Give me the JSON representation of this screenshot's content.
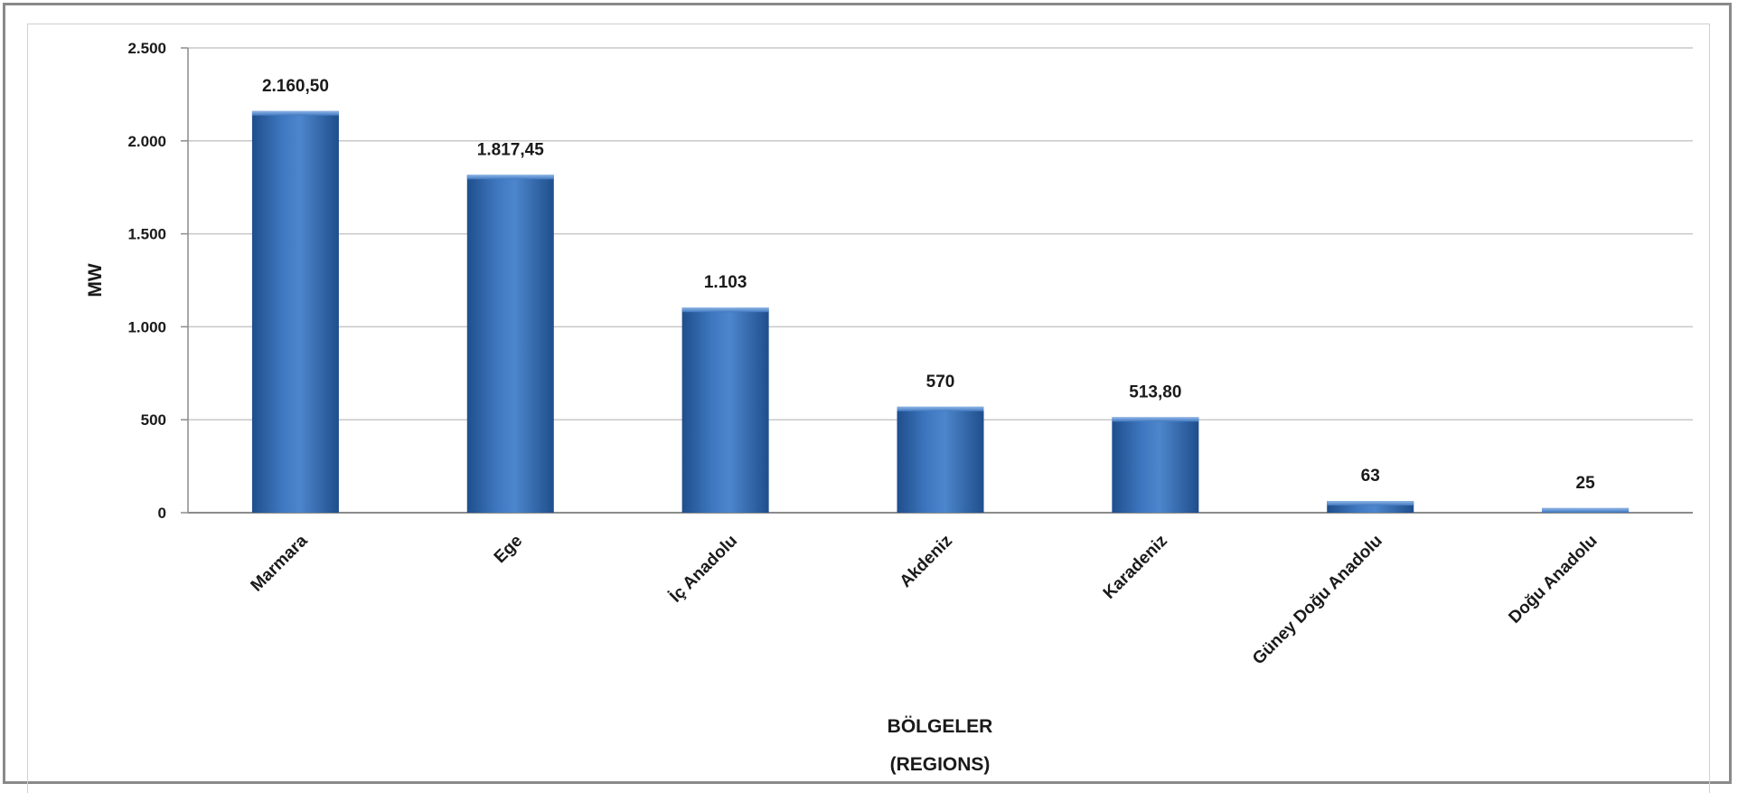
{
  "chart_data": {
    "type": "bar",
    "categories": [
      "Marmara",
      "Ege",
      "İç Anadolu",
      "Akdeniz",
      "Karadeniz",
      "Güney Doğu Anadolu",
      "Doğu Anadolu"
    ],
    "values": [
      2160.5,
      1817.45,
      1103,
      570,
      513.8,
      63,
      25
    ],
    "data_labels": [
      "2.160,50",
      "1.817,45",
      "1.103",
      "570",
      "513,80",
      "63",
      "25"
    ],
    "ylabel": "MW",
    "xlabel_line1": "BÖLGELER",
    "xlabel_line2": "(REGIONS)",
    "ylim": [
      0,
      2500
    ],
    "yticks": [
      0,
      500,
      1000,
      1500,
      2000,
      2500
    ],
    "ytick_labels": [
      "0",
      "500",
      "1.000",
      "1.500",
      "2.000",
      "2.500"
    ],
    "grid": true,
    "legend": "none",
    "colors": {
      "bar_dark": "#1f4e8c",
      "bar_mid": "#3f78c0",
      "bar_light": "#6a9ad6",
      "grid": "#c8c8c8",
      "axis": "#8c8c8c"
    }
  }
}
